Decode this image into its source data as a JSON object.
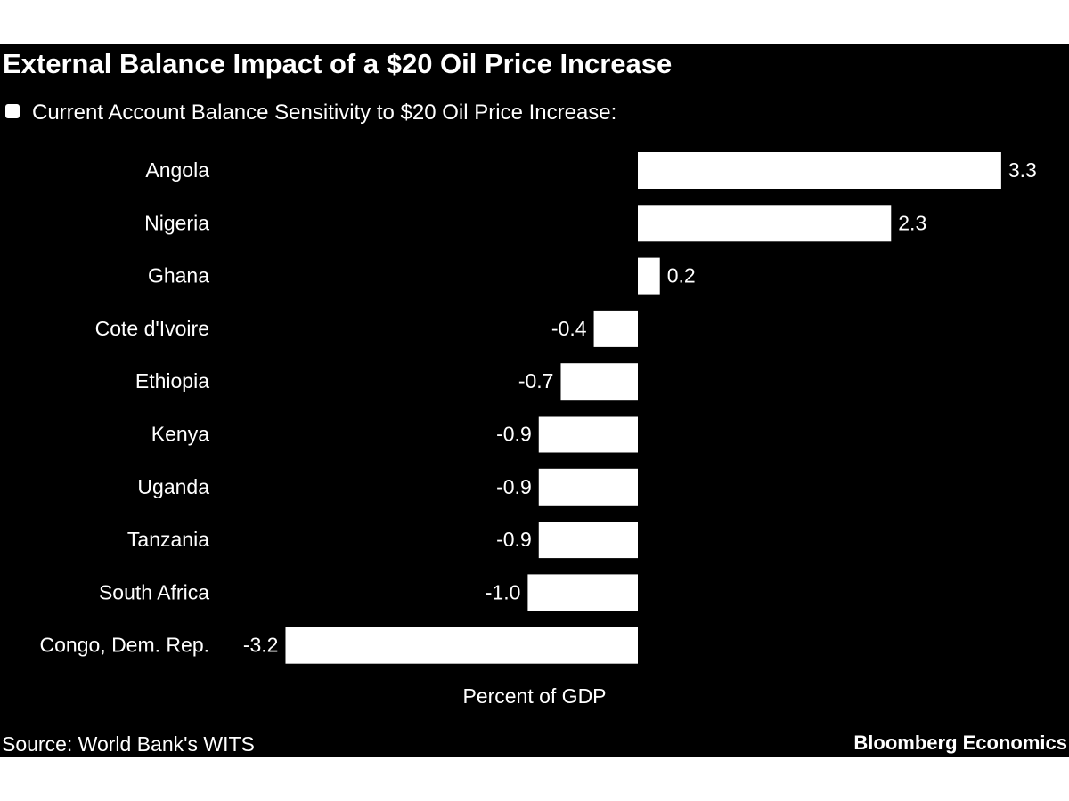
{
  "chart_data": {
    "type": "bar",
    "orientation": "horizontal",
    "title": "External Balance Impact of a $20 Oil Price Increase",
    "legend": "Current Account Balance Sensitivity to $20 Oil Price Increase:",
    "categories": [
      "Angola",
      "Nigeria",
      "Ghana",
      "Cote d'Ivoire",
      "Ethiopia",
      "Kenya",
      "Uganda",
      "Tanzania",
      "South Africa",
      "Congo, Dem. Rep."
    ],
    "values": [
      3.3,
      2.3,
      0.2,
      -0.4,
      -0.7,
      -0.9,
      -0.9,
      -0.9,
      -1.0,
      -3.2
    ],
    "value_labels": [
      "3.3",
      "2.3",
      "0.2",
      "-0.4",
      "-0.7",
      "-0.9",
      "-0.9",
      "-0.9",
      "-1.0",
      "-3.2"
    ],
    "xlabel": "Percent of GDP",
    "ylabel": "",
    "xlim": [
      -3.2,
      3.3
    ],
    "grid": false,
    "legend_position": "top-left",
    "colors": {
      "background": "#000000",
      "bar": "#ffffff",
      "text": "#ffffff"
    }
  },
  "footer": {
    "source": "Source: World Bank's WITS",
    "brand": "Bloomberg Economics"
  }
}
